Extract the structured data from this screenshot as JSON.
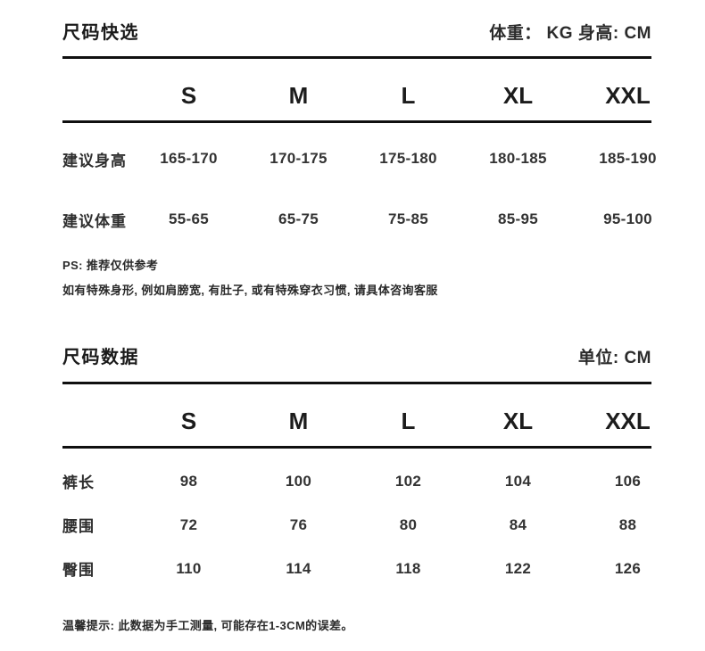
{
  "page": {
    "background": "#ffffff",
    "text_color": "#1f1f1f",
    "value_color": "#333333",
    "rule_color": "#101010"
  },
  "quick_select": {
    "title": "尺码快选",
    "unit_note": "体重： KG 身高: CM",
    "columns": [
      "S",
      "M",
      "L",
      "XL",
      "XXL"
    ],
    "rows": [
      {
        "label": "建议身高",
        "values": [
          "165-170",
          "170-175",
          "175-180",
          "180-185",
          "185-190"
        ]
      },
      {
        "label": "建议体重",
        "values": [
          "55-65",
          "65-75",
          "75-85",
          "85-95",
          "95-100"
        ]
      }
    ],
    "notes": [
      "PS: 推荐仅供参考",
      "如有特殊身形, 例如肩膀宽, 有肚子, 或有特殊穿衣习惯, 请具体咨询客服"
    ]
  },
  "size_data": {
    "title": "尺码数据",
    "unit_note": "单位: CM",
    "columns": [
      "S",
      "M",
      "L",
      "XL",
      "XXL"
    ],
    "rows": [
      {
        "label": "裤长",
        "values": [
          "98",
          "100",
          "102",
          "104",
          "106"
        ]
      },
      {
        "label": "腰围",
        "values": [
          "72",
          "76",
          "80",
          "84",
          "88"
        ]
      },
      {
        "label": "臀围",
        "values": [
          "110",
          "114",
          "118",
          "122",
          "126"
        ]
      }
    ],
    "footnote": "温馨提示: 此数据为手工测量, 可能存在1-3CM的误差。"
  }
}
